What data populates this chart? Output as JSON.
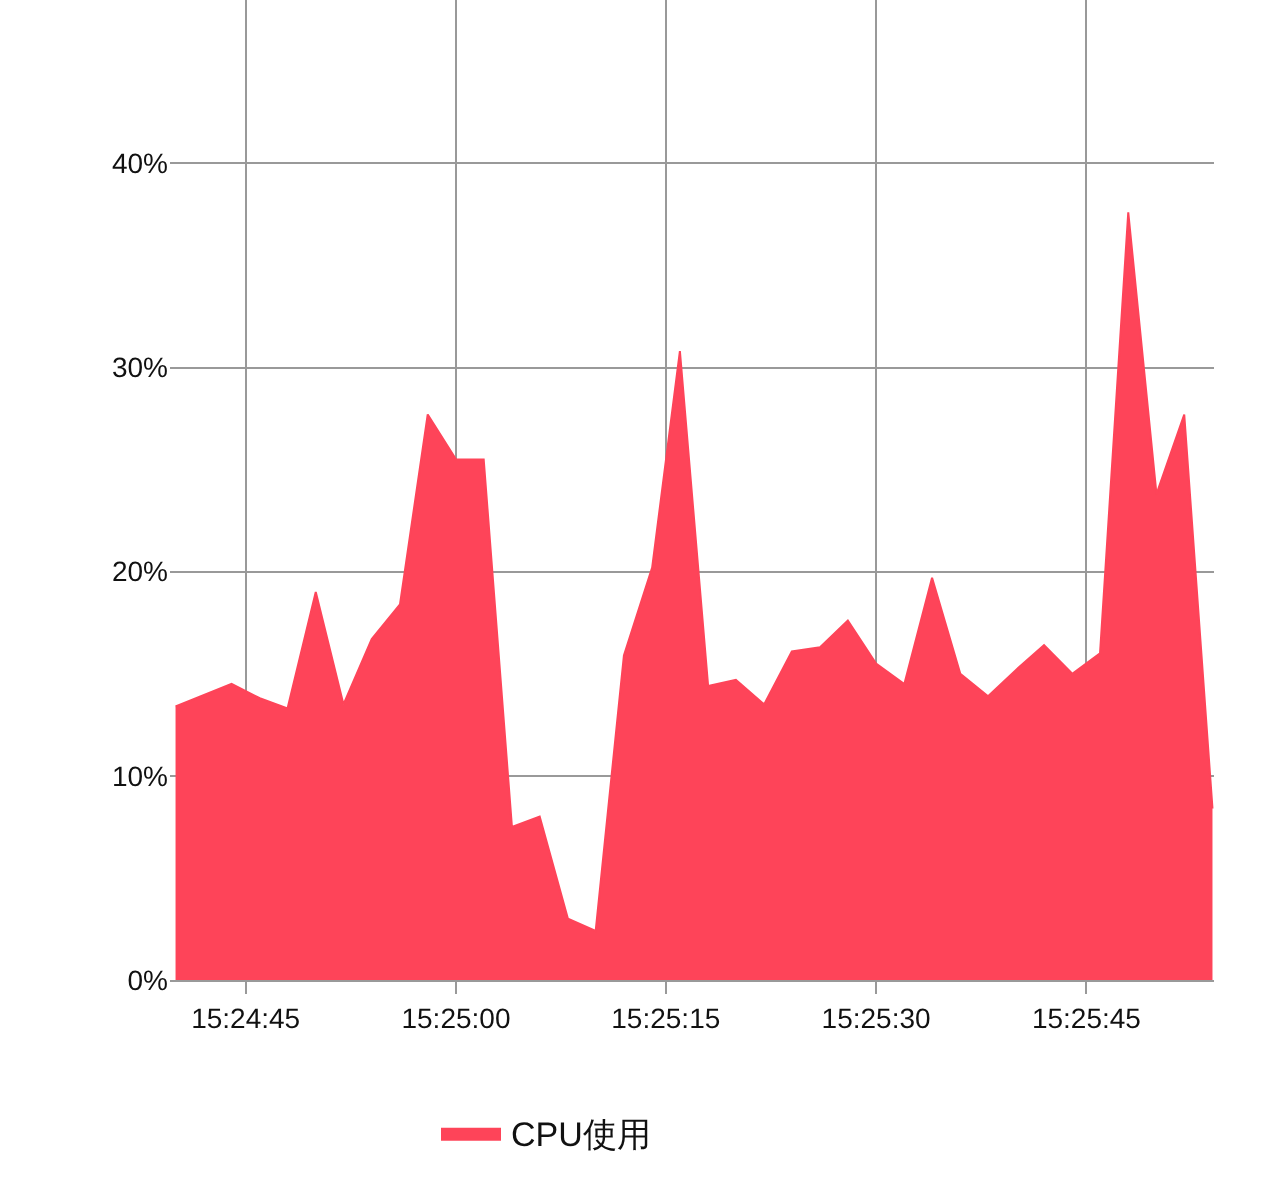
{
  "chart_data": {
    "type": "area",
    "x": [
      15.41111,
      15.41222,
      15.41278,
      15.41333,
      15.41389,
      15.41444,
      15.415,
      15.41556,
      15.41611,
      15.41667,
      15.41722,
      15.41778,
      15.41833,
      15.41889,
      15.41944,
      15.42,
      15.42056,
      15.42111,
      15.42167,
      15.42222,
      15.42278,
      15.42333,
      15.42389,
      15.42444,
      15.425,
      15.42556,
      15.42611,
      15.42667,
      15.42722,
      15.42778,
      15.42833,
      15.42889,
      15.42944,
      15.43,
      15.43056,
      15.43111,
      15.43167
    ],
    "series": [
      {
        "name": "CPU使用",
        "color": "#fe4459",
        "values": [
          13.4,
          14.5,
          13.8,
          13.3,
          19.0,
          13.5,
          16.7,
          18.4,
          27.7,
          25.5,
          25.5,
          7.5,
          8.0,
          3.0,
          2.4,
          15.9,
          20.2,
          30.8,
          14.4,
          14.7,
          13.5,
          16.1,
          16.3,
          17.6,
          15.5,
          14.5,
          19.7,
          15.0,
          13.9,
          15.2,
          16.4,
          15.0,
          16.0,
          37.6,
          23.8,
          27.7,
          8.4
        ]
      }
    ],
    "xlim": [
      15.411,
      15.4317
    ],
    "xticks": [
      {
        "value": 15.4125,
        "label": "15:24:45"
      },
      {
        "value": 15.41667,
        "label": "15:25:00"
      },
      {
        "value": 15.42083,
        "label": "15:25:15"
      },
      {
        "value": 15.425,
        "label": "15:25:30"
      },
      {
        "value": 15.42917,
        "label": "15:25:45"
      }
    ],
    "ylim": [
      0,
      48
    ],
    "yticks": [
      {
        "value": 0,
        "label": "0%"
      },
      {
        "value": 10,
        "label": "10%"
      },
      {
        "value": 20,
        "label": "20%"
      },
      {
        "value": 30,
        "label": "30%"
      },
      {
        "value": 40,
        "label": "40%"
      }
    ],
    "grid": true,
    "legend": "bottom"
  }
}
